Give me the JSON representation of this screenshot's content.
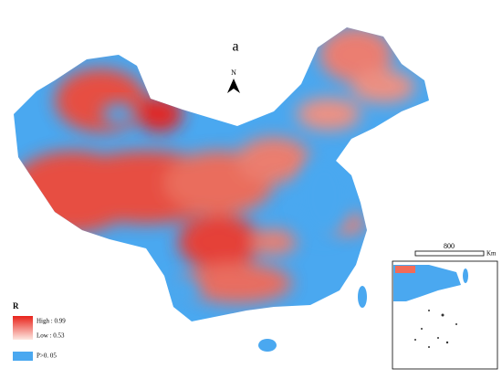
{
  "map": {
    "title": "a",
    "north": "N",
    "scale_bar": {
      "distance": "800",
      "unit": "Km"
    },
    "legend": {
      "title": "R",
      "high": "High : 0.99",
      "low": "Low : 0.53",
      "not_significant": "P>0. 05"
    }
  }
}
